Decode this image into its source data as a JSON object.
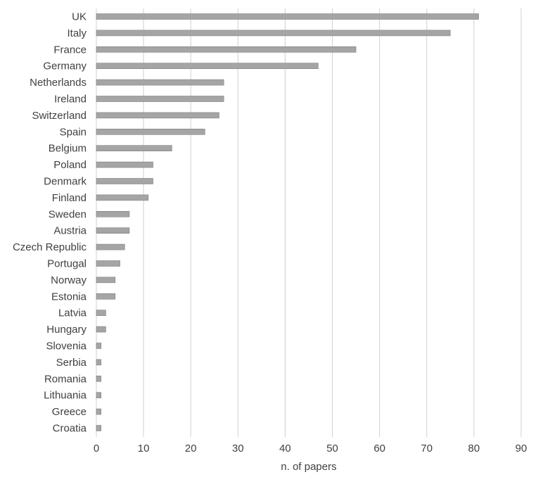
{
  "chart_data": {
    "type": "bar",
    "orientation": "horizontal",
    "categories": [
      "UK",
      "Italy",
      "France",
      "Germany",
      "Netherlands",
      "Ireland",
      "Switzerland",
      "Spain",
      "Belgium",
      "Poland",
      "Denmark",
      "Finland",
      "Sweden",
      "Austria",
      "Czech Republic",
      "Portugal",
      "Norway",
      "Estonia",
      "Latvia",
      "Hungary",
      "Slovenia",
      "Serbia",
      "Romania",
      "Lithuania",
      "Greece",
      "Croatia"
    ],
    "values": [
      81,
      75,
      55,
      47,
      27,
      27,
      26,
      23,
      16,
      12,
      12,
      11,
      7,
      7,
      6,
      5,
      4,
      4,
      2,
      2,
      1,
      1,
      1,
      1,
      1,
      1
    ],
    "xlabel": "n. of papers",
    "ylabel": "",
    "title": "",
    "xlim": [
      0,
      90
    ],
    "xticks": [
      "0",
      "10",
      "20",
      "30",
      "40",
      "50",
      "60",
      "70",
      "80",
      "90"
    ],
    "grid": "vertical",
    "legend": "none",
    "colors": {
      "bar_fill": "#a5a5a5",
      "bar_stroke": "#7f7f7f",
      "grid": "#d0d0d0",
      "text": "#404040"
    }
  }
}
